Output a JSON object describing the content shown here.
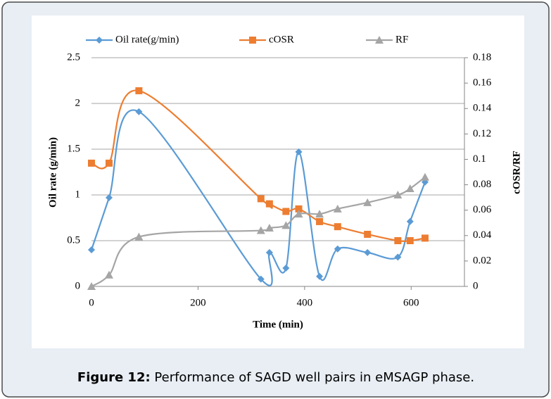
{
  "chart_data": {
    "type": "line",
    "xlabel": "Time (min)",
    "ylabel": "Oil rate (g/min)",
    "y2label": "cOSR/RF",
    "x": [
      0,
      33,
      89,
      318,
      334,
      365,
      389,
      428,
      462,
      518,
      575,
      598,
      626
    ],
    "series": [
      {
        "name": "Oil rate(g/min)",
        "color": "#5b9bd5",
        "marker": "diamond",
        "values": [
          0.4,
          0.97,
          1.91,
          0.08,
          0.37,
          0.2,
          1.47,
          0.11,
          0.41,
          0.37,
          0.32,
          0.71,
          1.14
        ]
      },
      {
        "name": "cOSR",
        "color": "#ed7d31",
        "marker": "square",
        "axis": "y2",
        "values": [
          0.097,
          0.097,
          0.154,
          0.069,
          0.065,
          0.059,
          0.061,
          0.051,
          0.047,
          0.041,
          0.036,
          0.036,
          0.038
        ]
      },
      {
        "name": "RF",
        "color": "#a5a5a5",
        "marker": "triangle",
        "axis": "y2",
        "values": [
          0,
          0.009,
          0.039,
          0.044,
          0.046,
          0.048,
          0.057,
          0.057,
          0.061,
          0.066,
          0.072,
          0.077,
          0.086
        ]
      }
    ],
    "xlim": [
      0,
      700
    ],
    "xticks": [
      0,
      200,
      400,
      600
    ],
    "ylim": [
      0,
      2.5
    ],
    "yticks": [
      0,
      0.5,
      1,
      1.5,
      2,
      2.5
    ],
    "y2lim": [
      0,
      0.18
    ],
    "y2ticks": [
      0,
      0.02,
      0.04,
      0.06,
      0.08,
      0.1,
      0.12,
      0.14,
      0.16,
      0.18
    ],
    "grid": true,
    "legend": "top",
    "smooth": true
  },
  "caption": {
    "label": "Figure 12:",
    "text": "Performance of SAGD well pairs in eMSAGP phase."
  }
}
